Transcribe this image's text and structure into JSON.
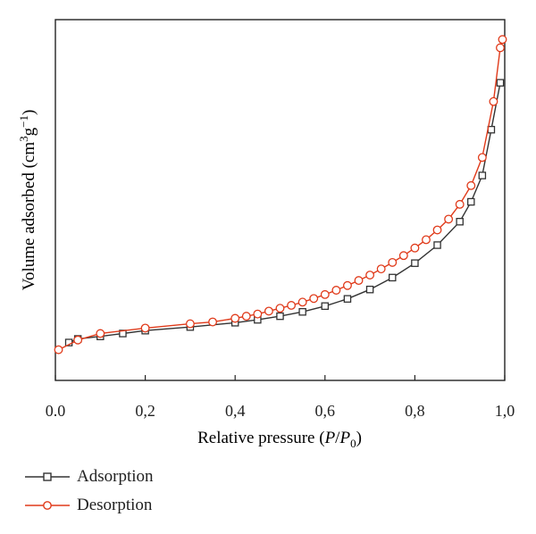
{
  "chart_data": {
    "type": "line",
    "xlabel": "Relative pressure (P/P0)",
    "ylabel": "Volume adsorbed (cm3g−1)",
    "xlim": [
      0,
      1.0
    ],
    "ylim": [
      0,
      10
    ],
    "xticks": [
      "0.0",
      "0,2",
      "0,4",
      "0,6",
      "0,8",
      "1,0"
    ],
    "yticks": [],
    "grid": false,
    "legend_position": "bottom-left",
    "series": [
      {
        "name": "Adsorption",
        "marker": "square",
        "color": "#333333",
        "x": [
          0.03,
          0.05,
          0.1,
          0.15,
          0.2,
          0.3,
          0.4,
          0.45,
          0.5,
          0.55,
          0.6,
          0.65,
          0.7,
          0.75,
          0.8,
          0.85,
          0.9,
          0.925,
          0.95,
          0.97,
          0.99
        ],
        "y": [
          1.05,
          1.15,
          1.22,
          1.3,
          1.38,
          1.48,
          1.6,
          1.68,
          1.78,
          1.9,
          2.06,
          2.26,
          2.52,
          2.85,
          3.25,
          3.75,
          4.4,
          4.95,
          5.68,
          6.95,
          8.25
        ]
      },
      {
        "name": "Desorption",
        "marker": "circle",
        "color": "#e03a1a",
        "x": [
          0.007,
          0.05,
          0.1,
          0.2,
          0.3,
          0.35,
          0.4,
          0.425,
          0.45,
          0.475,
          0.5,
          0.525,
          0.55,
          0.575,
          0.6,
          0.625,
          0.65,
          0.675,
          0.7,
          0.725,
          0.75,
          0.775,
          0.8,
          0.825,
          0.85,
          0.875,
          0.9,
          0.925,
          0.95,
          0.975,
          0.99,
          0.995
        ],
        "y": [
          0.85,
          1.12,
          1.3,
          1.45,
          1.57,
          1.62,
          1.72,
          1.78,
          1.84,
          1.92,
          2.0,
          2.08,
          2.17,
          2.27,
          2.38,
          2.5,
          2.63,
          2.77,
          2.92,
          3.09,
          3.27,
          3.46,
          3.67,
          3.9,
          4.17,
          4.47,
          4.88,
          5.4,
          6.18,
          7.73,
          9.22,
          9.45
        ]
      }
    ]
  }
}
